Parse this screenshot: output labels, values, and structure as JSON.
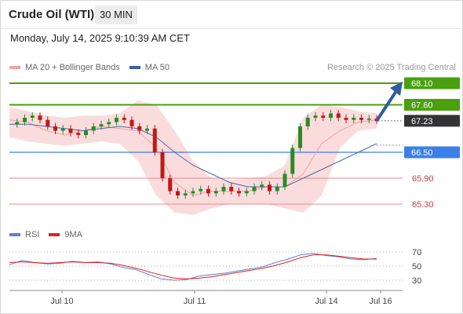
{
  "header": {
    "title": "Crude Oil (WTI)",
    "timeframe": "30 MIN",
    "datetime": "Monday, July 14, 2025 9:10:39 AM CET"
  },
  "legend": {
    "main": [
      {
        "label": "MA 20 + Bollinger Bands",
        "color": "#f0a3a3"
      },
      {
        "label": "MA 50",
        "color": "#3f5f9f"
      }
    ],
    "rsi": [
      {
        "label": "RSI",
        "color": "#5b7fd6"
      },
      {
        "label": "9MA",
        "color": "#e02020"
      }
    ],
    "copyright": "Research © 2025 Trading Central"
  },
  "colors": {
    "resistance": "#4aa00f",
    "support": "#3c7fe8",
    "weak_support": "#e88a8a",
    "current": "#333333",
    "candle_up": "#2a8a2a",
    "candle_down": "#c01818",
    "bollinger": "#f9d6d6",
    "ma20": "#f0a3a3",
    "ma50": "#4a6aa8",
    "arrow": "#2f5d9e",
    "rsi": "#5b7fd6",
    "rsi_ma": "#e02020"
  },
  "chart_data": [
    {
      "type": "candlestick",
      "title": "Crude Oil (WTI)",
      "timeframe": "30 MIN",
      "x_ticks": [
        "Jul 10",
        "Jul 11",
        "Jul 14",
        "Jul 16"
      ],
      "ylim": [
        65.0,
        68.3
      ],
      "levels": [
        {
          "label": "68.10",
          "value": 68.1,
          "kind": "resistance"
        },
        {
          "label": "67.60",
          "value": 67.6,
          "kind": "resistance"
        },
        {
          "label": "67.23",
          "value": 67.23,
          "kind": "current"
        },
        {
          "label": "66.50",
          "value": 66.5,
          "kind": "support"
        },
        {
          "label": "65.90",
          "value": 65.9,
          "kind": "weak_support"
        },
        {
          "label": "65.30",
          "value": 65.3,
          "kind": "weak_support"
        }
      ],
      "forecast_target": 68.1,
      "series": [
        {
          "name": "MA 20 + Bollinger Bands",
          "values": [
            67.25,
            67.2,
            67.0,
            66.9,
            67.0,
            67.1,
            67.05,
            67.0,
            66.6,
            65.8,
            65.5,
            65.6,
            65.6,
            65.6,
            65.7,
            65.7,
            66.0,
            66.7,
            67.0,
            67.2,
            67.25
          ]
        },
        {
          "name": "MA 50",
          "values": [
            67.15,
            67.15,
            67.1,
            67.05,
            67.0,
            67.05,
            67.1,
            67.05,
            66.85,
            66.5,
            66.2,
            66.0,
            65.8,
            65.7,
            65.7,
            65.7,
            65.9,
            66.1,
            66.3,
            66.5,
            66.7
          ]
        },
        {
          "name": "Bollinger Upper",
          "values": [
            67.55,
            67.45,
            67.35,
            67.3,
            67.35,
            67.35,
            67.4,
            67.7,
            67.6,
            67.0,
            66.3,
            65.9,
            65.85,
            65.9,
            65.95,
            66.2,
            67.3,
            67.6,
            67.55,
            67.45,
            67.4
          ]
        },
        {
          "name": "Bollinger Lower",
          "values": [
            66.85,
            66.75,
            66.7,
            66.65,
            66.7,
            66.75,
            66.7,
            66.3,
            65.5,
            65.1,
            65.05,
            65.2,
            65.3,
            65.3,
            65.3,
            65.2,
            65.1,
            65.5,
            66.6,
            67.0,
            67.05
          ]
        }
      ],
      "closes": [
        67.15,
        67.2,
        67.3,
        67.35,
        67.25,
        67.1,
        67.0,
        67.05,
        66.95,
        66.9,
        67.0,
        67.1,
        67.15,
        67.2,
        67.3,
        67.25,
        67.1,
        67.0,
        67.05,
        66.5,
        65.9,
        65.6,
        65.5,
        65.55,
        65.6,
        65.65,
        65.55,
        65.6,
        65.7,
        65.6,
        65.55,
        65.6,
        65.7,
        65.75,
        65.6,
        65.7,
        66.0,
        66.6,
        67.1,
        67.3,
        67.35,
        67.3,
        67.4,
        67.3,
        67.25,
        67.3,
        67.25,
        67.28,
        67.23
      ]
    },
    {
      "type": "line",
      "title": "RSI",
      "ylim": [
        20,
        80
      ],
      "y_ticks": [
        70,
        50,
        30
      ],
      "series": [
        {
          "name": "RSI",
          "values": [
            52,
            58,
            55,
            53,
            54,
            57,
            55,
            56,
            53,
            48,
            45,
            38,
            32,
            30,
            31,
            36,
            38,
            40,
            43,
            46,
            49,
            55,
            60,
            66,
            68,
            65,
            63,
            60,
            59,
            61
          ]
        },
        {
          "name": "9MA",
          "values": [
            55,
            56,
            55,
            54,
            55,
            56,
            55,
            55,
            54,
            51,
            47,
            42,
            37,
            33,
            32,
            33,
            35,
            38,
            41,
            44,
            47,
            51,
            56,
            62,
            66,
            66,
            64,
            62,
            60,
            60
          ]
        }
      ]
    }
  ]
}
